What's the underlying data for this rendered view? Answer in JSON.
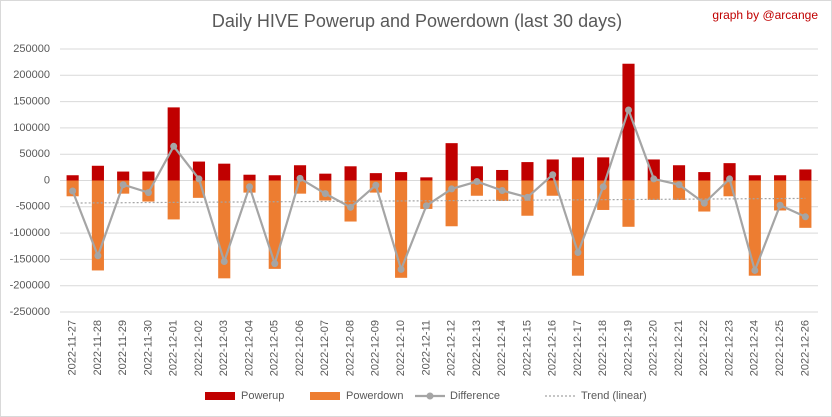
{
  "chart_data": {
    "type": "bar",
    "title": "Daily HIVE Powerup and Powerdown (last 30 days)",
    "credit": "graph by @arcange",
    "categories": [
      "2022-11-27",
      "2022-11-28",
      "2022-11-29",
      "2022-11-30",
      "2022-12-01",
      "2022-12-02",
      "2022-12-03",
      "2022-12-04",
      "2022-12-05",
      "2022-12-06",
      "2022-12-07",
      "2022-12-08",
      "2022-12-09",
      "2022-12-10",
      "2022-12-11",
      "2022-12-12",
      "2022-12-13",
      "2022-12-14",
      "2022-12-15",
      "2022-12-16",
      "2022-12-17",
      "2022-12-18",
      "2022-12-19",
      "2022-12-20",
      "2022-12-21",
      "2022-12-22",
      "2022-12-23",
      "2022-12-24",
      "2022-12-25",
      "2022-12-26"
    ],
    "series": [
      {
        "name": "Powerup",
        "color": "#c00000",
        "values": [
          10000,
          28000,
          17000,
          17000,
          139000,
          36000,
          32000,
          11000,
          10000,
          29000,
          13000,
          27000,
          14000,
          16000,
          6000,
          71000,
          27000,
          20000,
          35000,
          40000,
          44000,
          44000,
          222000,
          40000,
          29000,
          16000,
          33000,
          10000,
          10000,
          21000
        ]
      },
      {
        "name": "Powerdown",
        "color": "#ed7d31",
        "values": [
          -30000,
          -171000,
          -25000,
          -40000,
          -74000,
          -33000,
          -186000,
          -23000,
          -168000,
          -25000,
          -38000,
          -78000,
          -23000,
          -185000,
          -54000,
          -87000,
          -29000,
          -39000,
          -67000,
          -29000,
          -181000,
          -56000,
          -88000,
          -37000,
          -37000,
          -59000,
          -30000,
          -181000,
          -57000,
          -90000
        ]
      },
      {
        "name": "Difference",
        "type": "line",
        "color": "#a5a5a5",
        "values": [
          -20000,
          -143000,
          -8000,
          -23000,
          65000,
          3000,
          -154000,
          -12000,
          -158000,
          4000,
          -25000,
          -51000,
          -9000,
          -169000,
          -48000,
          -16000,
          -2000,
          -19000,
          -32000,
          11000,
          -137000,
          -12000,
          134000,
          3000,
          -8000,
          -43000,
          3000,
          -171000,
          -47000,
          -69000
        ]
      }
    ],
    "trend_label": "Trend (linear)",
    "ylim": [
      -250000,
      250000
    ],
    "yticks": [
      -250000,
      -200000,
      -150000,
      -100000,
      -50000,
      0,
      50000,
      100000,
      150000,
      200000,
      250000
    ],
    "grid": true
  }
}
